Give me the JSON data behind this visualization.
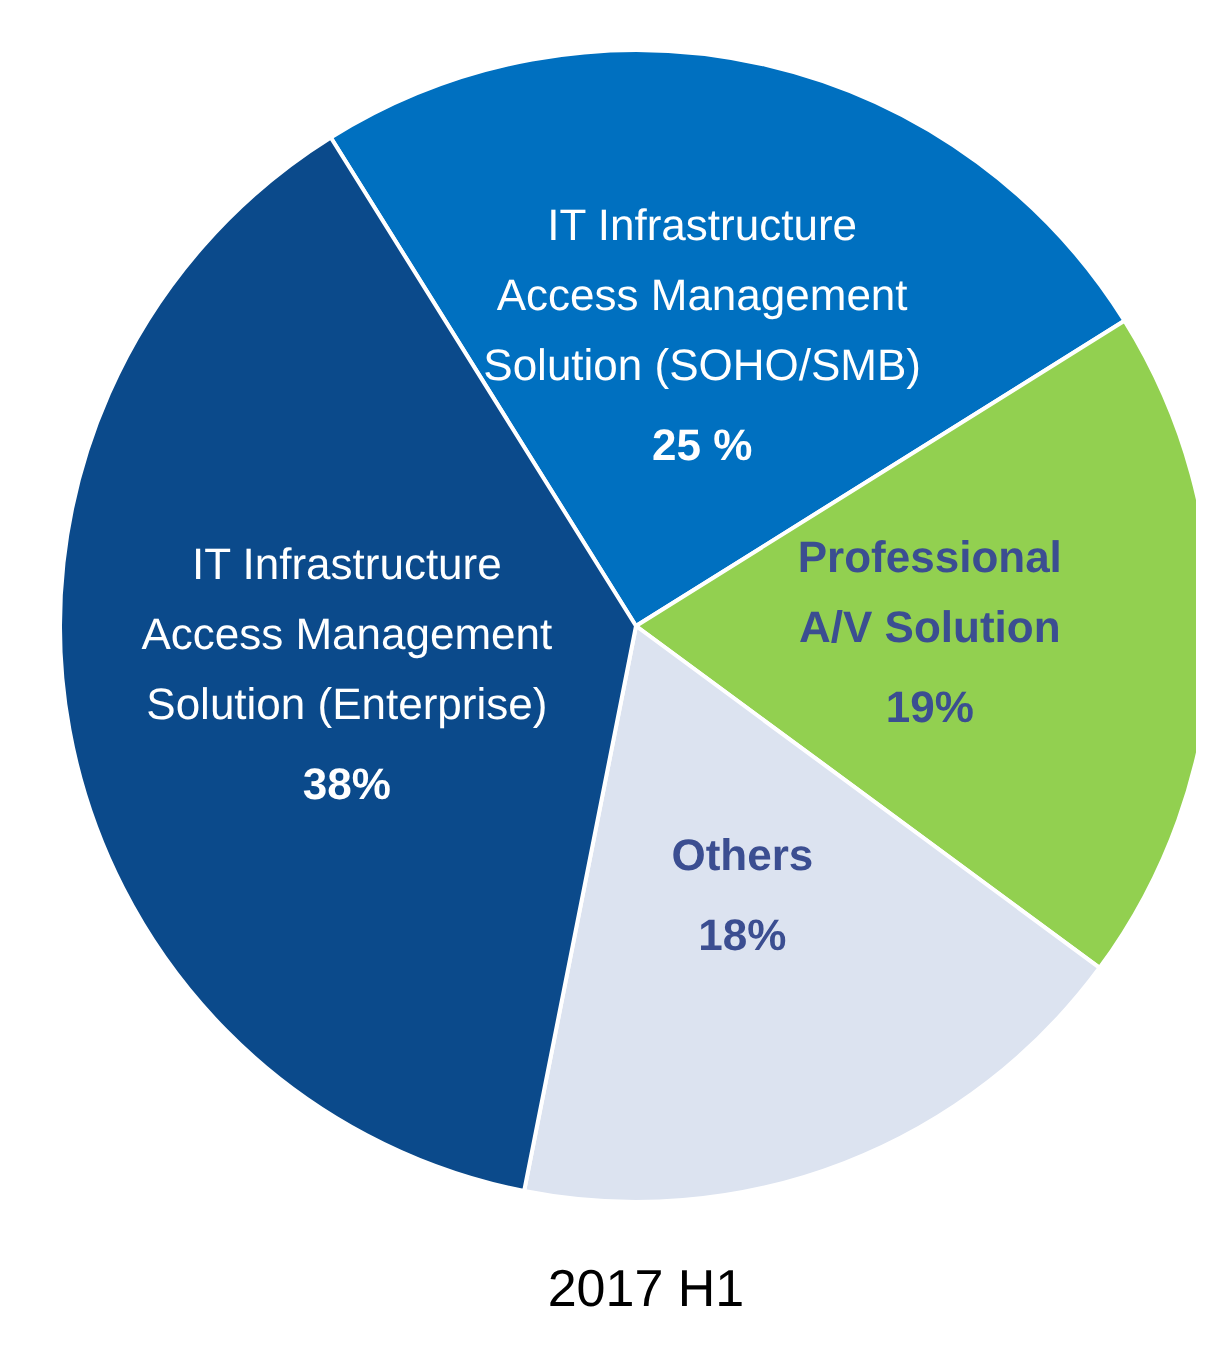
{
  "chart_data": {
    "type": "pie",
    "title": "2017 H1",
    "categories": [
      "IT Infrastructure\nAccess Management\nSolution (SOHO/SMB)",
      "Professional\nA/V Solution",
      "Others",
      "IT Infrastructure\nAccess Management\nSolution (Enterprise)"
    ],
    "values": [
      25,
      19,
      18,
      38
    ],
    "value_labels": [
      "25 %",
      "19%",
      "18%",
      "38%"
    ],
    "colors": [
      "#0070c0",
      "#92d050",
      "#dce3f0",
      "#0b4a8b"
    ],
    "legend": false
  }
}
